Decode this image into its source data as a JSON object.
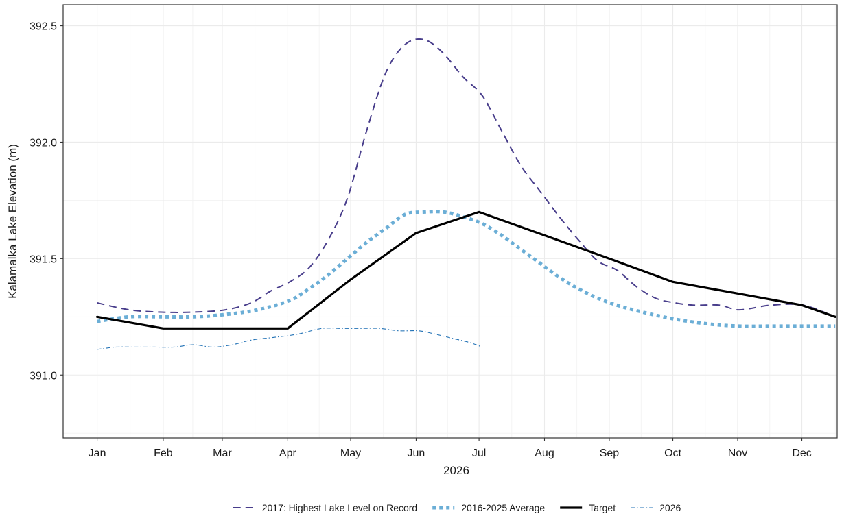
{
  "chart_data": {
    "type": "line",
    "title": "",
    "xlabel": "2026",
    "ylabel": "Kalamalka Lake Elevation (m)",
    "ylim": [
      390.73,
      392.59
    ],
    "xlim": [
      -0.53,
      11.53
    ],
    "x_ticks": [
      {
        "label": "Jan",
        "x": 0
      },
      {
        "label": "Feb",
        "x": 1.03
      },
      {
        "label": "Mar",
        "x": 1.95
      },
      {
        "label": "Apr",
        "x": 2.97
      },
      {
        "label": "May",
        "x": 3.95
      },
      {
        "label": "Jun",
        "x": 4.97
      },
      {
        "label": "Jul",
        "x": 5.95
      },
      {
        "label": "Aug",
        "x": 6.97
      },
      {
        "label": "Sep",
        "x": 7.98
      },
      {
        "label": "Oct",
        "x": 8.97
      },
      {
        "label": "Nov",
        "x": 9.98
      },
      {
        "label": "Dec",
        "x": 10.98
      }
    ],
    "y_ticks": [
      391.0,
      391.5,
      392.0,
      392.5
    ],
    "grid": true,
    "legend_position": "bottom",
    "series": [
      {
        "name": "2017: Highest Lake Level on Record",
        "color": "#483d8b",
        "style": "dashed",
        "points": [
          [
            0,
            391.31
          ],
          [
            0.5,
            391.28
          ],
          [
            1,
            391.27
          ],
          [
            1.5,
            391.27
          ],
          [
            2,
            391.28
          ],
          [
            2.4,
            391.31
          ],
          [
            2.7,
            391.36
          ],
          [
            3,
            391.4
          ],
          [
            3.3,
            391.46
          ],
          [
            3.6,
            391.58
          ],
          [
            3.9,
            391.76
          ],
          [
            4.2,
            392.05
          ],
          [
            4.5,
            392.3
          ],
          [
            4.8,
            392.42
          ],
          [
            5.1,
            392.44
          ],
          [
            5.4,
            392.38
          ],
          [
            5.7,
            392.28
          ],
          [
            6.0,
            392.2
          ],
          [
            6.3,
            392.05
          ],
          [
            6.6,
            391.9
          ],
          [
            6.9,
            391.79
          ],
          [
            7.2,
            391.68
          ],
          [
            7.5,
            391.58
          ],
          [
            7.8,
            391.49
          ],
          [
            8.1,
            391.45
          ],
          [
            8.4,
            391.38
          ],
          [
            8.7,
            391.33
          ],
          [
            9.0,
            391.31
          ],
          [
            9.3,
            391.3
          ],
          [
            9.7,
            391.3
          ],
          [
            10.0,
            391.28
          ],
          [
            10.5,
            391.3
          ],
          [
            11.0,
            391.3
          ],
          [
            11.5,
            391.25
          ]
        ]
      },
      {
        "name": "2016-2025 Average",
        "color": "#6baed6",
        "style": "dotted",
        "points": [
          [
            0,
            391.23
          ],
          [
            0.5,
            391.25
          ],
          [
            1,
            391.25
          ],
          [
            1.5,
            391.25
          ],
          [
            2,
            391.26
          ],
          [
            2.5,
            391.28
          ],
          [
            3,
            391.32
          ],
          [
            3.3,
            391.37
          ],
          [
            3.6,
            391.43
          ],
          [
            3.9,
            391.5
          ],
          [
            4.2,
            391.57
          ],
          [
            4.5,
            391.63
          ],
          [
            4.8,
            391.69
          ],
          [
            5.1,
            391.7
          ],
          [
            5.4,
            391.7
          ],
          [
            5.7,
            391.68
          ],
          [
            6.0,
            391.65
          ],
          [
            6.3,
            391.6
          ],
          [
            6.6,
            391.54
          ],
          [
            6.9,
            391.48
          ],
          [
            7.2,
            391.42
          ],
          [
            7.5,
            391.37
          ],
          [
            7.8,
            391.33
          ],
          [
            8.1,
            391.3
          ],
          [
            8.5,
            391.27
          ],
          [
            9.0,
            391.24
          ],
          [
            9.5,
            391.22
          ],
          [
            10.0,
            391.21
          ],
          [
            10.5,
            391.21
          ],
          [
            11.0,
            391.21
          ],
          [
            11.5,
            391.21
          ]
        ]
      },
      {
        "name": "Target",
        "color": "#000000",
        "style": "solid",
        "points": [
          [
            0,
            391.25
          ],
          [
            1.03,
            391.2
          ],
          [
            1.95,
            391.2
          ],
          [
            2.97,
            391.2
          ],
          [
            3.95,
            391.41
          ],
          [
            4.97,
            391.61
          ],
          [
            5.95,
            391.7
          ],
          [
            6.97,
            391.6
          ],
          [
            7.98,
            391.5
          ],
          [
            8.97,
            391.4
          ],
          [
            9.98,
            391.35
          ],
          [
            10.98,
            391.3
          ],
          [
            11.5,
            391.25
          ]
        ]
      },
      {
        "name": "2026",
        "color": "#2171b5",
        "style": "dashdot",
        "points": [
          [
            0,
            391.11
          ],
          [
            0.3,
            391.12
          ],
          [
            0.6,
            391.12
          ],
          [
            0.9,
            391.12
          ],
          [
            1.2,
            391.12
          ],
          [
            1.5,
            391.13
          ],
          [
            1.8,
            391.12
          ],
          [
            2.1,
            391.13
          ],
          [
            2.4,
            391.15
          ],
          [
            2.7,
            391.16
          ],
          [
            3.0,
            391.17
          ],
          [
            3.2,
            391.18
          ],
          [
            3.5,
            391.2
          ],
          [
            3.8,
            391.2
          ],
          [
            4.1,
            391.2
          ],
          [
            4.4,
            391.2
          ],
          [
            4.7,
            391.19
          ],
          [
            5.0,
            391.19
          ],
          [
            5.2,
            391.18
          ],
          [
            5.5,
            391.16
          ],
          [
            5.8,
            391.14
          ],
          [
            6.0,
            391.12
          ]
        ]
      }
    ]
  }
}
